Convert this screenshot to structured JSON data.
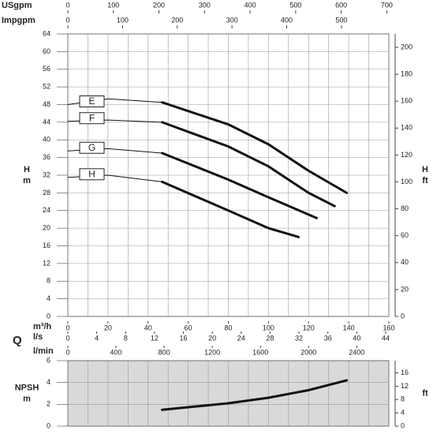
{
  "chart_data": [
    {
      "type": "line",
      "y_label": [
        "H",
        "m"
      ],
      "y2_label": [
        "H",
        "ft"
      ],
      "xlim": [
        0,
        160
      ],
      "xticks": [
        0,
        20,
        40,
        60,
        80,
        100,
        120,
        140,
        160
      ],
      "x_grid": [
        0,
        10,
        20,
        30,
        40,
        50,
        60,
        70,
        80,
        90,
        100,
        110,
        120,
        130,
        140,
        150,
        160
      ],
      "ylim": [
        0,
        64
      ],
      "yticks": [
        0,
        4,
        8,
        12,
        16,
        20,
        24,
        28,
        32,
        36,
        40,
        44,
        48,
        52,
        56,
        60,
        64
      ],
      "y2lim": [
        0,
        209.97
      ],
      "y2ticks": [
        0,
        20,
        40,
        60,
        80,
        100,
        120,
        140,
        160,
        180,
        200
      ],
      "grid": true,
      "grid_color": "#9a9a9a",
      "line_color": "#111111",
      "top_axes": [
        {
          "label": "USgpm",
          "lim": [
            0,
            704.5
          ],
          "ticks": [
            0,
            100,
            200,
            300,
            400,
            500,
            600,
            700
          ]
        },
        {
          "label": "Impgpm",
          "lim": [
            0,
            586.6
          ],
          "ticks": [
            0,
            100,
            200,
            300,
            400,
            500
          ]
        }
      ],
      "series": [
        {
          "name": "E",
          "segments": [
            {
              "width": "thin",
              "x": [
                0,
                20,
                47
              ],
              "values": [
                48,
                49.3,
                48.5
              ]
            },
            {
              "width": "thick",
              "x": [
                47,
                80,
                100,
                120,
                139
              ],
              "values": [
                48.5,
                43.5,
                39,
                33,
                28
              ]
            }
          ]
        },
        {
          "name": "F",
          "segments": [
            {
              "width": "thin",
              "x": [
                0,
                20,
                47
              ],
              "values": [
                44.2,
                44.5,
                44
              ]
            },
            {
              "width": "thick",
              "x": [
                47,
                80,
                100,
                120,
                133
              ],
              "values": [
                44,
                38.5,
                34,
                28,
                25
              ]
            }
          ]
        },
        {
          "name": "G",
          "segments": [
            {
              "width": "thin",
              "x": [
                0,
                20,
                47
              ],
              "values": [
                37.5,
                38,
                37
              ]
            },
            {
              "width": "thick",
              "x": [
                47,
                80,
                100,
                124
              ],
              "values": [
                37,
                31,
                27,
                22.3
              ]
            }
          ]
        },
        {
          "name": "H",
          "segments": [
            {
              "width": "thin",
              "x": [
                0,
                20,
                47
              ],
              "values": [
                31.5,
                32,
                30.5
              ]
            },
            {
              "width": "thick",
              "x": [
                47,
                80,
                100,
                115
              ],
              "values": [
                30.5,
                24,
                20,
                18
              ]
            }
          ]
        }
      ],
      "q_label": "Q",
      "bottom_axes": [
        {
          "label": "m³/h",
          "lim": [
            0,
            160
          ],
          "ticks": [
            0,
            20,
            40,
            60,
            80,
            100,
            120,
            140,
            160
          ]
        },
        {
          "label": "l/s",
          "lim": [
            0,
            44.44
          ],
          "ticks": [
            0,
            4,
            8,
            12,
            16,
            20,
            24,
            28,
            32,
            36,
            40,
            44
          ]
        },
        {
          "label": "l/min",
          "lim": [
            0,
            2666.7
          ],
          "ticks": [
            0,
            400,
            800,
            1200,
            1600,
            2000,
            2400
          ]
        }
      ]
    },
    {
      "type": "line",
      "y_label": [
        "NPSH",
        "m"
      ],
      "y2_label": [
        "ft"
      ],
      "xlim": [
        0,
        160
      ],
      "x_grid": [
        0,
        10,
        20,
        30,
        40,
        50,
        60,
        70,
        80,
        90,
        100,
        110,
        120,
        130,
        140,
        150,
        160
      ],
      "ylim": [
        0,
        6
      ],
      "yticks": [
        0,
        2,
        4,
        6
      ],
      "y2lim": [
        0,
        19.685
      ],
      "y2ticks": [
        0,
        4,
        8,
        12,
        16
      ],
      "grid": true,
      "grid_color": "#9a9a9a",
      "background": "#d9d9d9",
      "line_color": "#111111",
      "series": [
        {
          "segments": [
            {
              "width": "thick",
              "x": [
                47,
                80,
                100,
                120,
                139
              ],
              "values": [
                1.5,
                2.1,
                2.6,
                3.3,
                4.2
              ]
            }
          ]
        }
      ]
    }
  ]
}
